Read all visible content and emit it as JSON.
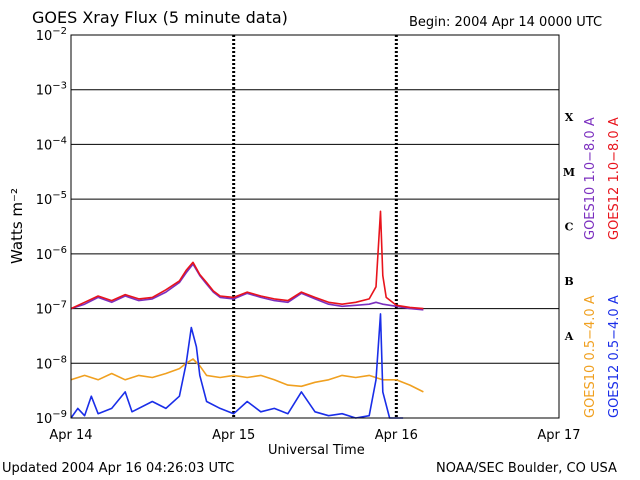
{
  "header": {
    "title": "GOES Xray Flux (5 minute data)",
    "begin": "Begin:  2004 Apr 14 0000 UTC"
  },
  "footer": {
    "updated": "Updated 2004 Apr 16 04:26:03 UTC",
    "source": "NOAA/SEC Boulder, CO USA"
  },
  "colors": {
    "goes10_long": "#7b2fbf",
    "goes12_long": "#e8141c",
    "goes10_short": "#f0a020",
    "goes12_short": "#1a2ee8"
  },
  "chart_data": {
    "type": "line",
    "title": "GOES Xray Flux (5 minute data)",
    "xlabel": "Universal Time",
    "ylabel": "Watts m⁻²",
    "y_scale": "log",
    "ylim": [
      1e-09,
      0.01
    ],
    "xlim": [
      "2004-04-14",
      "2004-04-17"
    ],
    "x_ticks": [
      "Apr 14",
      "Apr 15",
      "Apr 16",
      "Apr 17"
    ],
    "y_ticks": [
      {
        "base": "10",
        "exp": "−9",
        "value": 1e-09
      },
      {
        "base": "10",
        "exp": "−8",
        "value": 1e-08
      },
      {
        "base": "10",
        "exp": "−7",
        "value": 1e-07
      },
      {
        "base": "10",
        "exp": "−6",
        "value": 1e-06
      },
      {
        "base": "10",
        "exp": "−5",
        "value": 1e-05
      },
      {
        "base": "10",
        "exp": "−4",
        "value": 0.0001
      },
      {
        "base": "10",
        "exp": "−3",
        "value": 0.001
      },
      {
        "base": "10",
        "exp": "−2",
        "value": 0.01
      }
    ],
    "flare_classes": [
      {
        "label": "X",
        "low": 0.0001,
        "high": 0.001
      },
      {
        "label": "M",
        "low": 1e-05,
        "high": 0.0001
      },
      {
        "label": "C",
        "low": 1e-06,
        "high": 1e-05
      },
      {
        "label": "B",
        "low": 1e-07,
        "high": 1e-06
      },
      {
        "label": "A",
        "low": 1e-08,
        "high": 1e-07
      }
    ],
    "grid": true,
    "legend_placement": "right",
    "series": [
      {
        "name": "GOES10 1.0−8.0 A",
        "color": "#7b2fbf",
        "points": [
          [
            "2004-04-14 00:00",
            1e-07
          ],
          [
            "2004-04-14 02:00",
            1.2e-07
          ],
          [
            "2004-04-14 04:00",
            1.6e-07
          ],
          [
            "2004-04-14 06:00",
            1.3e-07
          ],
          [
            "2004-04-14 08:00",
            1.7e-07
          ],
          [
            "2004-04-14 10:00",
            1.4e-07
          ],
          [
            "2004-04-14 12:00",
            1.5e-07
          ],
          [
            "2004-04-14 14:00",
            2e-07
          ],
          [
            "2004-04-14 16:00",
            3e-07
          ],
          [
            "2004-04-14 17:00",
            4.5e-07
          ],
          [
            "2004-04-14 18:00",
            6.5e-07
          ],
          [
            "2004-04-14 19:00",
            4e-07
          ],
          [
            "2004-04-14 20:00",
            2.8e-07
          ],
          [
            "2004-04-14 21:00",
            2e-07
          ],
          [
            "2004-04-14 22:00",
            1.6e-07
          ],
          [
            "2004-04-15 00:00",
            1.5e-07
          ],
          [
            "2004-04-15 02:00",
            1.9e-07
          ],
          [
            "2004-04-15 04:00",
            1.6e-07
          ],
          [
            "2004-04-15 06:00",
            1.4e-07
          ],
          [
            "2004-04-15 08:00",
            1.3e-07
          ],
          [
            "2004-04-15 10:00",
            1.9e-07
          ],
          [
            "2004-04-15 12:00",
            1.5e-07
          ],
          [
            "2004-04-15 14:00",
            1.2e-07
          ],
          [
            "2004-04-15 16:00",
            1.1e-07
          ],
          [
            "2004-04-15 18:00",
            1.15e-07
          ],
          [
            "2004-04-15 20:00",
            1.2e-07
          ],
          [
            "2004-04-15 21:00",
            1.3e-07
          ],
          [
            "2004-04-15 22:00",
            1.2e-07
          ],
          [
            "2004-04-16 00:00",
            1.1e-07
          ],
          [
            "2004-04-16 02:00",
            1e-07
          ],
          [
            "2004-04-16 04:00",
            9.5e-08
          ]
        ]
      },
      {
        "name": "GOES12 1.0−8.0 A",
        "color": "#e8141c",
        "points": [
          [
            "2004-04-14 00:00",
            1e-07
          ],
          [
            "2004-04-14 02:00",
            1.3e-07
          ],
          [
            "2004-04-14 04:00",
            1.7e-07
          ],
          [
            "2004-04-14 06:00",
            1.4e-07
          ],
          [
            "2004-04-14 08:00",
            1.8e-07
          ],
          [
            "2004-04-14 10:00",
            1.5e-07
          ],
          [
            "2004-04-14 12:00",
            1.6e-07
          ],
          [
            "2004-04-14 14:00",
            2.2e-07
          ],
          [
            "2004-04-14 16:00",
            3.2e-07
          ],
          [
            "2004-04-14 17:00",
            5e-07
          ],
          [
            "2004-04-14 18:00",
            7e-07
          ],
          [
            "2004-04-14 19:00",
            4.2e-07
          ],
          [
            "2004-04-14 20:00",
            3e-07
          ],
          [
            "2004-04-14 21:00",
            2.1e-07
          ],
          [
            "2004-04-14 22:00",
            1.7e-07
          ],
          [
            "2004-04-15 00:00",
            1.6e-07
          ],
          [
            "2004-04-15 02:00",
            2e-07
          ],
          [
            "2004-04-15 04:00",
            1.7e-07
          ],
          [
            "2004-04-15 06:00",
            1.5e-07
          ],
          [
            "2004-04-15 08:00",
            1.4e-07
          ],
          [
            "2004-04-15 10:00",
            2e-07
          ],
          [
            "2004-04-15 12:00",
            1.6e-07
          ],
          [
            "2004-04-15 14:00",
            1.3e-07
          ],
          [
            "2004-04-15 16:00",
            1.2e-07
          ],
          [
            "2004-04-15 18:00",
            1.3e-07
          ],
          [
            "2004-04-15 20:00",
            1.5e-07
          ],
          [
            "2004-04-15 21:00",
            2.5e-07
          ],
          [
            "2004-04-15 21:40",
            6e-06
          ],
          [
            "2004-04-15 22:00",
            4e-07
          ],
          [
            "2004-04-15 22:30",
            1.6e-07
          ],
          [
            "2004-04-16 00:00",
            1.15e-07
          ],
          [
            "2004-04-16 02:00",
            1.05e-07
          ],
          [
            "2004-04-16 04:00",
            1e-07
          ]
        ]
      },
      {
        "name": "GOES10 0.5−4.0 A",
        "color": "#f0a020",
        "points": [
          [
            "2004-04-14 00:00",
            5e-09
          ],
          [
            "2004-04-14 02:00",
            6e-09
          ],
          [
            "2004-04-14 04:00",
            5e-09
          ],
          [
            "2004-04-14 06:00",
            6.5e-09
          ],
          [
            "2004-04-14 08:00",
            5e-09
          ],
          [
            "2004-04-14 10:00",
            6e-09
          ],
          [
            "2004-04-14 12:00",
            5.5e-09
          ],
          [
            "2004-04-14 14:00",
            6.5e-09
          ],
          [
            "2004-04-14 16:00",
            8e-09
          ],
          [
            "2004-04-14 17:00",
            1e-08
          ],
          [
            "2004-04-14 18:00",
            1.2e-08
          ],
          [
            "2004-04-14 19:00",
            9e-09
          ],
          [
            "2004-04-14 20:00",
            6e-09
          ],
          [
            "2004-04-14 22:00",
            5.5e-09
          ],
          [
            "2004-04-15 00:00",
            6e-09
          ],
          [
            "2004-04-15 02:00",
            5.5e-09
          ],
          [
            "2004-04-15 04:00",
            6e-09
          ],
          [
            "2004-04-15 06:00",
            5e-09
          ],
          [
            "2004-04-15 08:00",
            4e-09
          ],
          [
            "2004-04-15 10:00",
            3.8e-09
          ],
          [
            "2004-04-15 12:00",
            4.5e-09
          ],
          [
            "2004-04-15 14:00",
            5e-09
          ],
          [
            "2004-04-15 16:00",
            6e-09
          ],
          [
            "2004-04-15 18:00",
            5.5e-09
          ],
          [
            "2004-04-15 20:00",
            6e-09
          ],
          [
            "2004-04-15 22:00",
            5e-09
          ],
          [
            "2004-04-16 00:00",
            5e-09
          ],
          [
            "2004-04-16 02:00",
            4e-09
          ],
          [
            "2004-04-16 04:00",
            3e-09
          ]
        ]
      },
      {
        "name": "GOES12 0.5−4.0 A",
        "color": "#1a2ee8",
        "points": [
          [
            "2004-04-14 00:00",
            1e-09
          ],
          [
            "2004-04-14 01:00",
            1.5e-09
          ],
          [
            "2004-04-14 02:00",
            1.1e-09
          ],
          [
            "2004-04-14 03:00",
            2.5e-09
          ],
          [
            "2004-04-14 04:00",
            1.2e-09
          ],
          [
            "2004-04-14 06:00",
            1.5e-09
          ],
          [
            "2004-04-14 08:00",
            3e-09
          ],
          [
            "2004-04-14 09:00",
            1.3e-09
          ],
          [
            "2004-04-14 12:00",
            2e-09
          ],
          [
            "2004-04-14 14:00",
            1.5e-09
          ],
          [
            "2004-04-14 16:00",
            2.5e-09
          ],
          [
            "2004-04-14 17:00",
            1e-08
          ],
          [
            "2004-04-14 17:45",
            4.5e-08
          ],
          [
            "2004-04-14 18:30",
            2e-08
          ],
          [
            "2004-04-14 19:00",
            6e-09
          ],
          [
            "2004-04-14 20:00",
            2e-09
          ],
          [
            "2004-04-14 22:00",
            1.5e-09
          ],
          [
            "2004-04-15 00:00",
            1.2e-09
          ],
          [
            "2004-04-15 02:00",
            2e-09
          ],
          [
            "2004-04-15 04:00",
            1.3e-09
          ],
          [
            "2004-04-15 06:00",
            1.5e-09
          ],
          [
            "2004-04-15 08:00",
            1.2e-09
          ],
          [
            "2004-04-15 10:00",
            3e-09
          ],
          [
            "2004-04-15 12:00",
            1.3e-09
          ],
          [
            "2004-04-15 14:00",
            1.1e-09
          ],
          [
            "2004-04-15 16:00",
            1.2e-09
          ],
          [
            "2004-04-15 18:00",
            1e-09
          ],
          [
            "2004-04-15 20:00",
            1.1e-09
          ],
          [
            "2004-04-15 21:00",
            5e-09
          ],
          [
            "2004-04-15 21:40",
            8e-08
          ],
          [
            "2004-04-15 22:00",
            3e-09
          ],
          [
            "2004-04-15 23:00",
            1e-09
          ],
          [
            "2004-04-16 01:00",
            1e-09
          ]
        ]
      }
    ]
  }
}
